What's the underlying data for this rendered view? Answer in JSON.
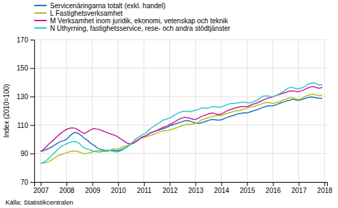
{
  "chart_data": {
    "type": "line",
    "ylabel": "Index (2010=100)",
    "source": "Källa: Statistikcentralen",
    "ylim": [
      70,
      170
    ],
    "yticks": [
      70,
      90,
      110,
      130,
      150,
      170
    ],
    "xlim": [
      2006.75,
      2018.1
    ],
    "xticks": [
      2007,
      2008,
      2009,
      2010,
      2011,
      2012,
      2013,
      2014,
      2015,
      2016,
      2017,
      2018
    ],
    "grid": true,
    "legend": "upper left",
    "x": [
      2007.0,
      2007.083,
      2007.167,
      2007.25,
      2007.333,
      2007.417,
      2007.5,
      2007.583,
      2007.667,
      2007.75,
      2007.833,
      2007.917,
      2008.0,
      2008.083,
      2008.167,
      2008.25,
      2008.333,
      2008.417,
      2008.5,
      2008.583,
      2008.667,
      2008.75,
      2008.833,
      2008.917,
      2009.0,
      2009.083,
      2009.167,
      2009.25,
      2009.333,
      2009.417,
      2009.5,
      2009.583,
      2009.667,
      2009.75,
      2009.833,
      2009.917,
      2010.0,
      2010.083,
      2010.167,
      2010.25,
      2010.333,
      2010.417,
      2010.5,
      2010.583,
      2010.667,
      2010.75,
      2010.833,
      2010.917,
      2011.0,
      2011.083,
      2011.167,
      2011.25,
      2011.333,
      2011.417,
      2011.5,
      2011.583,
      2011.667,
      2011.75,
      2011.833,
      2011.917,
      2012.0,
      2012.083,
      2012.167,
      2012.25,
      2012.333,
      2012.417,
      2012.5,
      2012.583,
      2012.667,
      2012.75,
      2012.833,
      2012.917,
      2013.0,
      2013.083,
      2013.167,
      2013.25,
      2013.333,
      2013.417,
      2013.5,
      2013.583,
      2013.667,
      2013.75,
      2013.833,
      2013.917,
      2014.0,
      2014.083,
      2014.167,
      2014.25,
      2014.333,
      2014.417,
      2014.5,
      2014.583,
      2014.667,
      2014.75,
      2014.833,
      2014.917,
      2015.0,
      2015.083,
      2015.167,
      2015.25,
      2015.333,
      2015.417,
      2015.5,
      2015.583,
      2015.667,
      2015.75,
      2015.833,
      2015.917,
      2016.0,
      2016.083,
      2016.167,
      2016.25,
      2016.333,
      2016.417,
      2016.5,
      2016.583,
      2016.667,
      2016.75,
      2016.833,
      2016.917,
      2017.0,
      2017.083,
      2017.167,
      2017.25,
      2017.333,
      2017.417,
      2017.5,
      2017.583,
      2017.667,
      2017.75,
      2017.833,
      2017.917
    ],
    "series": [
      {
        "name": "Servicenäringarna totalt (exkl. handel)",
        "color": "#2070b4",
        "values": [
          91.5,
          91.8,
          92.5,
          93.2,
          93.8,
          94.5,
          95.5,
          96.5,
          97.5,
          98.2,
          98.8,
          99.2,
          100.0,
          101.5,
          103.0,
          104.2,
          104.8,
          104.5,
          103.5,
          102.5,
          101.0,
          100.0,
          99.0,
          97.5,
          96.5,
          95.5,
          94.2,
          93.5,
          93.0,
          92.5,
          92.2,
          92.0,
          92.2,
          92.5,
          92.3,
          92.0,
          92.0,
          92.5,
          93.0,
          93.8,
          94.5,
          95.5,
          96.5,
          97.5,
          98.5,
          99.5,
          100.5,
          101.2,
          101.8,
          102.5,
          103.5,
          104.5,
          105.0,
          105.5,
          106.0,
          106.5,
          107.0,
          107.5,
          108.0,
          108.5,
          109.5,
          110.0,
          110.5,
          111.0,
          111.5,
          112.0,
          112.5,
          113.0,
          113.2,
          113.0,
          112.5,
          112.0,
          111.5,
          111.2,
          111.2,
          111.8,
          112.2,
          112.8,
          113.2,
          113.8,
          114.0,
          113.8,
          113.5,
          113.5,
          113.8,
          114.2,
          115.0,
          115.5,
          116.0,
          116.5,
          117.0,
          117.5,
          118.0,
          118.2,
          118.5,
          118.5,
          118.5,
          119.0,
          119.5,
          120.0,
          120.5,
          121.0,
          121.5,
          122.2,
          122.8,
          123.2,
          123.5,
          123.5,
          123.5,
          124.0,
          124.5,
          125.2,
          125.8,
          126.2,
          126.8,
          127.2,
          127.5,
          128.0,
          128.0,
          127.5,
          127.5,
          127.8,
          128.2,
          128.8,
          129.2,
          129.5,
          129.8,
          129.5,
          129.2,
          129.0,
          128.8,
          128.8
        ]
      },
      {
        "name": "L Fastighetsverksamhet",
        "color": "#b0be18",
        "values": [
          83.5,
          83.2,
          83.5,
          84.0,
          84.5,
          85.5,
          86.5,
          87.5,
          88.5,
          89.0,
          89.5,
          90.0,
          90.5,
          91.0,
          91.5,
          91.8,
          91.8,
          91.5,
          91.0,
          90.5,
          90.0,
          90.0,
          90.2,
          90.5,
          91.0,
          91.5,
          92.0,
          92.2,
          92.0,
          91.8,
          91.5,
          91.5,
          92.0,
          92.8,
          93.2,
          93.2,
          93.2,
          93.8,
          94.5,
          95.0,
          95.5,
          96.0,
          96.5,
          97.5,
          98.5,
          99.5,
          100.5,
          101.0,
          101.2,
          101.8,
          102.2,
          102.8,
          103.2,
          103.8,
          104.2,
          105.0,
          105.5,
          106.0,
          106.0,
          106.0,
          106.5,
          107.0,
          107.5,
          108.0,
          108.5,
          109.2,
          109.8,
          110.2,
          110.5,
          110.5,
          110.5,
          111.0,
          111.2,
          111.8,
          112.8,
          113.8,
          114.2,
          114.8,
          115.2,
          115.8,
          116.2,
          116.5,
          116.8,
          116.8,
          116.8,
          117.2,
          117.8,
          118.2,
          118.8,
          119.2,
          119.8,
          120.0,
          120.0,
          120.5,
          121.0,
          121.5,
          122.0,
          122.5,
          123.0,
          123.0,
          123.5,
          124.0,
          124.5,
          125.0,
          125.5,
          126.0,
          125.8,
          125.5,
          125.2,
          125.5,
          126.0,
          126.5,
          127.0,
          127.8,
          128.2,
          128.8,
          129.2,
          129.2,
          128.8,
          128.2,
          128.0,
          128.5,
          129.2,
          130.0,
          130.8,
          131.2,
          131.5,
          131.8,
          131.2,
          130.8,
          130.8,
          131.2
        ]
      },
      {
        "name": "M Verksamhet inom juridik, ekonomi, vetenskap och teknik",
        "color": "#c8189c",
        "values": [
          91.5,
          92.5,
          94.0,
          95.5,
          97.0,
          98.2,
          99.5,
          101.0,
          102.5,
          103.8,
          105.0,
          106.0,
          107.0,
          107.5,
          108.0,
          108.0,
          107.8,
          107.0,
          106.0,
          105.0,
          104.2,
          104.5,
          105.5,
          106.5,
          107.2,
          107.5,
          107.2,
          107.0,
          106.5,
          105.8,
          105.2,
          104.8,
          104.0,
          103.5,
          103.0,
          102.5,
          101.5,
          100.5,
          99.5,
          98.5,
          97.5,
          97.0,
          96.8,
          97.2,
          98.0,
          99.0,
          100.2,
          101.5,
          102.0,
          102.5,
          103.5,
          104.5,
          105.0,
          105.5,
          106.2,
          107.0,
          107.8,
          108.5,
          109.0,
          109.5,
          110.5,
          111.0,
          112.0,
          112.8,
          113.8,
          114.5,
          115.0,
          115.5,
          115.2,
          115.0,
          114.5,
          114.0,
          114.0,
          114.5,
          115.5,
          116.2,
          116.8,
          117.2,
          117.8,
          118.2,
          118.5,
          118.0,
          117.5,
          117.5,
          117.8,
          118.5,
          119.5,
          120.2,
          120.8,
          121.2,
          121.8,
          122.2,
          122.5,
          123.0,
          123.0,
          123.0,
          123.0,
          123.5,
          124.2,
          124.8,
          125.2,
          125.8,
          126.5,
          127.2,
          128.0,
          128.5,
          129.0,
          129.5,
          129.8,
          130.5,
          131.0,
          131.5,
          132.0,
          132.5,
          133.0,
          133.5,
          134.0,
          134.0,
          134.0,
          133.5,
          133.5,
          134.0,
          134.5,
          135.2,
          136.0,
          136.5,
          137.0,
          137.0,
          136.5,
          136.0,
          136.0,
          136.5
        ]
      },
      {
        "name": "N Uthyrning, fastighetsservice, rese- och andra stödtjänster",
        "color": "#28c8c8",
        "values": [
          83.0,
          83.5,
          84.5,
          85.5,
          87.0,
          88.5,
          90.0,
          91.5,
          93.0,
          94.5,
          95.5,
          96.0,
          96.8,
          97.5,
          98.0,
          98.5,
          98.5,
          98.0,
          97.0,
          95.5,
          94.2,
          93.5,
          93.0,
          92.5,
          92.0,
          91.5,
          91.2,
          91.0,
          91.2,
          91.5,
          92.0,
          92.5,
          92.2,
          91.8,
          91.5,
          91.2,
          91.2,
          91.8,
          92.5,
          93.5,
          94.5,
          95.8,
          97.0,
          98.5,
          100.0,
          101.2,
          102.0,
          103.0,
          103.5,
          104.5,
          106.0,
          107.5,
          108.5,
          109.5,
          110.5,
          111.5,
          112.5,
          113.5,
          114.0,
          114.5,
          115.0,
          115.8,
          116.8,
          117.8,
          118.5,
          119.0,
          119.5,
          119.8,
          119.5,
          119.5,
          119.5,
          120.0,
          120.5,
          120.8,
          121.5,
          122.0,
          122.2,
          121.8,
          122.0,
          122.5,
          123.0,
          123.0,
          122.5,
          122.5,
          122.8,
          123.2,
          124.0,
          124.5,
          125.0,
          125.2,
          125.2,
          125.5,
          125.5,
          126.0,
          126.0,
          126.0,
          125.8,
          125.5,
          125.8,
          126.5,
          127.0,
          127.8,
          128.8,
          130.0,
          130.5,
          130.5,
          130.5,
          130.0,
          130.0,
          130.5,
          131.2,
          132.0,
          132.8,
          133.8,
          135.0,
          135.8,
          136.5,
          136.5,
          136.0,
          135.5,
          135.5,
          136.0,
          136.5,
          137.2,
          138.5,
          139.0,
          139.5,
          139.8,
          139.2,
          138.5,
          138.0,
          138.5
        ]
      }
    ]
  }
}
